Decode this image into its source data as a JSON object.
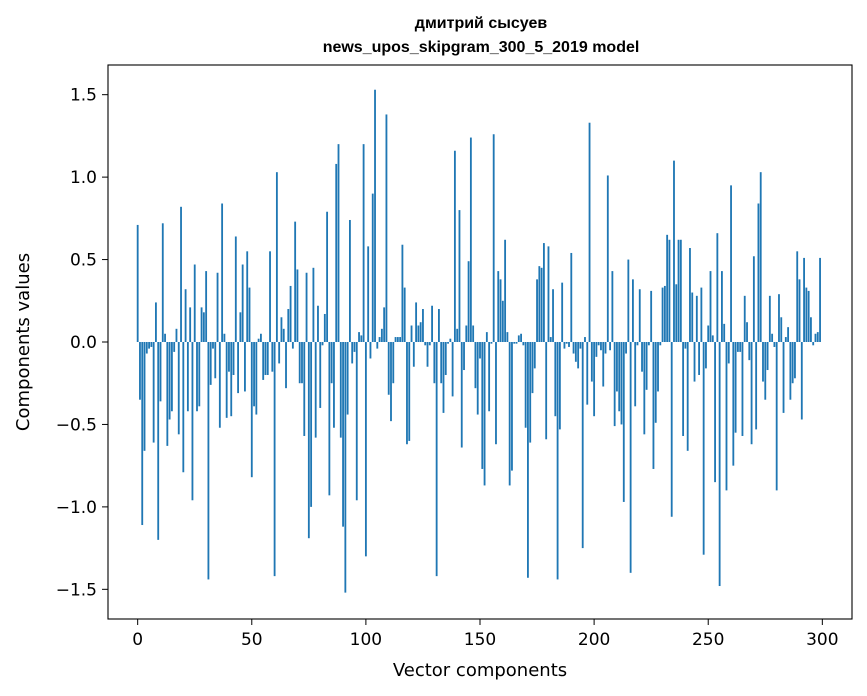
{
  "chart_data": {
    "type": "bar",
    "title_lines": [
      "дмитрий сысуев",
      "news_upos_skipgram_300_5_2019 model"
    ],
    "xlabel": "Vector components",
    "ylabel": "Components values",
    "xlim": [
      -13,
      313
    ],
    "ylim": [
      -1.68,
      1.68
    ],
    "xticks": [
      0,
      50,
      100,
      150,
      200,
      250,
      300
    ],
    "yticks": [
      1.5,
      1.0,
      0.5,
      0.0,
      -0.5,
      -1.0,
      -1.5
    ],
    "ytick_labels": [
      "1.5",
      "1.0",
      "0.5",
      "0.0",
      "−0.5",
      "−1.0",
      "−1.5"
    ],
    "xtick_labels": [
      "0",
      "50",
      "100",
      "150",
      "200",
      "250",
      "300"
    ],
    "grid": false,
    "bar_color": "#1f77b4",
    "values": [
      0.71,
      -0.35,
      -1.11,
      -0.66,
      -0.07,
      -0.04,
      -0.03,
      -0.61,
      0.24,
      -1.2,
      -0.36,
      0.72,
      0.05,
      -0.63,
      -0.47,
      -0.42,
      -0.06,
      0.08,
      -0.56,
      0.82,
      -0.79,
      0.32,
      -0.42,
      0.21,
      -0.96,
      0.47,
      -0.42,
      -0.39,
      0.21,
      0.18,
      0.43,
      -1.44,
      -0.26,
      -0.04,
      -0.22,
      0.42,
      -0.52,
      0.84,
      0.05,
      -0.46,
      -0.18,
      -0.45,
      -0.2,
      0.64,
      -0.31,
      0.18,
      0.47,
      -0.3,
      0.55,
      0.33,
      -0.82,
      -0.39,
      -0.44,
      0.02,
      0.05,
      -0.23,
      -0.2,
      -0.2,
      0.55,
      -0.18,
      -1.42,
      1.03,
      -0.13,
      0.15,
      0.08,
      -0.28,
      0.2,
      0.34,
      -0.04,
      0.73,
      0.44,
      -0.25,
      -0.25,
      -0.57,
      0.42,
      -1.19,
      -1.0,
      0.45,
      -0.58,
      0.22,
      -0.4,
      -0.02,
      0.17,
      0.79,
      -0.93,
      -0.25,
      -0.52,
      1.08,
      1.2,
      -0.58,
      -1.12,
      -1.52,
      -0.44,
      0.74,
      -0.13,
      -0.06,
      -0.96,
      0.06,
      0.04,
      1.2,
      -1.3,
      0.58,
      -0.1,
      0.9,
      1.53,
      -0.04,
      0.03,
      0.08,
      0.21,
      1.38,
      -0.32,
      -0.48,
      -0.25,
      0.03,
      0.03,
      0.03,
      0.59,
      0.33,
      -0.62,
      -0.6,
      0.1,
      -0.15,
      0.24,
      0.1,
      0.12,
      0.2,
      -0.02,
      -0.15,
      -0.02,
      0.22,
      -0.25,
      -1.42,
      0.2,
      -0.25,
      -0.43,
      -0.2,
      -0.01,
      0.02,
      -0.33,
      1.16,
      0.08,
      0.8,
      -0.64,
      -0.17,
      0.1,
      0.49,
      1.24,
      0.1,
      -0.28,
      -0.44,
      -0.1,
      -0.77,
      -0.87,
      0.06,
      -0.42,
      -0.01,
      1.26,
      -0.62,
      0.43,
      0.38,
      0.25,
      0.62,
      0.06,
      -0.87,
      -0.78,
      -0.01,
      -0.01,
      0.04,
      0.05,
      -0.02,
      -0.52,
      -1.43,
      -0.61,
      -0.31,
      -0.16,
      0.38,
      0.46,
      0.45,
      0.6,
      -0.59,
      0.58,
      0.03,
      0.32,
      -0.45,
      -1.44,
      -0.53,
      0.36,
      -0.04,
      -0.01,
      -0.03,
      0.54,
      -0.07,
      -0.12,
      -0.16,
      -0.04,
      -1.25,
      0.03,
      -0.38,
      1.33,
      -0.24,
      -0.45,
      -0.09,
      -0.02,
      -0.05,
      -0.27,
      -0.07,
      1.01,
      -0.05,
      0.43,
      -0.51,
      -0.3,
      -0.42,
      -0.5,
      -0.97,
      -0.07,
      0.5,
      -1.4,
      0.38,
      -0.39,
      -0.02,
      0.32,
      -0.18,
      -0.56,
      -0.29,
      -0.02,
      0.31,
      -0.77,
      -0.49,
      -0.3,
      -0.02,
      0.33,
      0.34,
      0.65,
      0.62,
      -1.06,
      1.1,
      0.35,
      0.62,
      0.62,
      -0.57,
      -0.04,
      -0.66,
      0.57,
      0.3,
      -0.24,
      0.28,
      -0.2,
      0.33,
      -1.29,
      -0.16,
      0.1,
      0.43,
      0.04,
      -0.85,
      0.66,
      -1.48,
      0.43,
      0.11,
      -0.9,
      -0.13,
      0.95,
      -0.75,
      -0.55,
      -0.06,
      -0.06,
      -0.57,
      0.28,
      0.12,
      -0.11,
      -0.62,
      0.52,
      -0.53,
      0.84,
      1.03,
      -0.24,
      -0.35,
      -0.17,
      0.28,
      0.05,
      -0.03,
      -0.9,
      0.29,
      0.15,
      -0.43,
      0.03,
      0.09,
      -0.35,
      -0.25,
      -0.22,
      0.55,
      0.38,
      -0.47,
      0.51,
      0.33,
      0.31,
      0.15,
      -0.02,
      0.05,
      0.06,
      0.51
    ]
  }
}
